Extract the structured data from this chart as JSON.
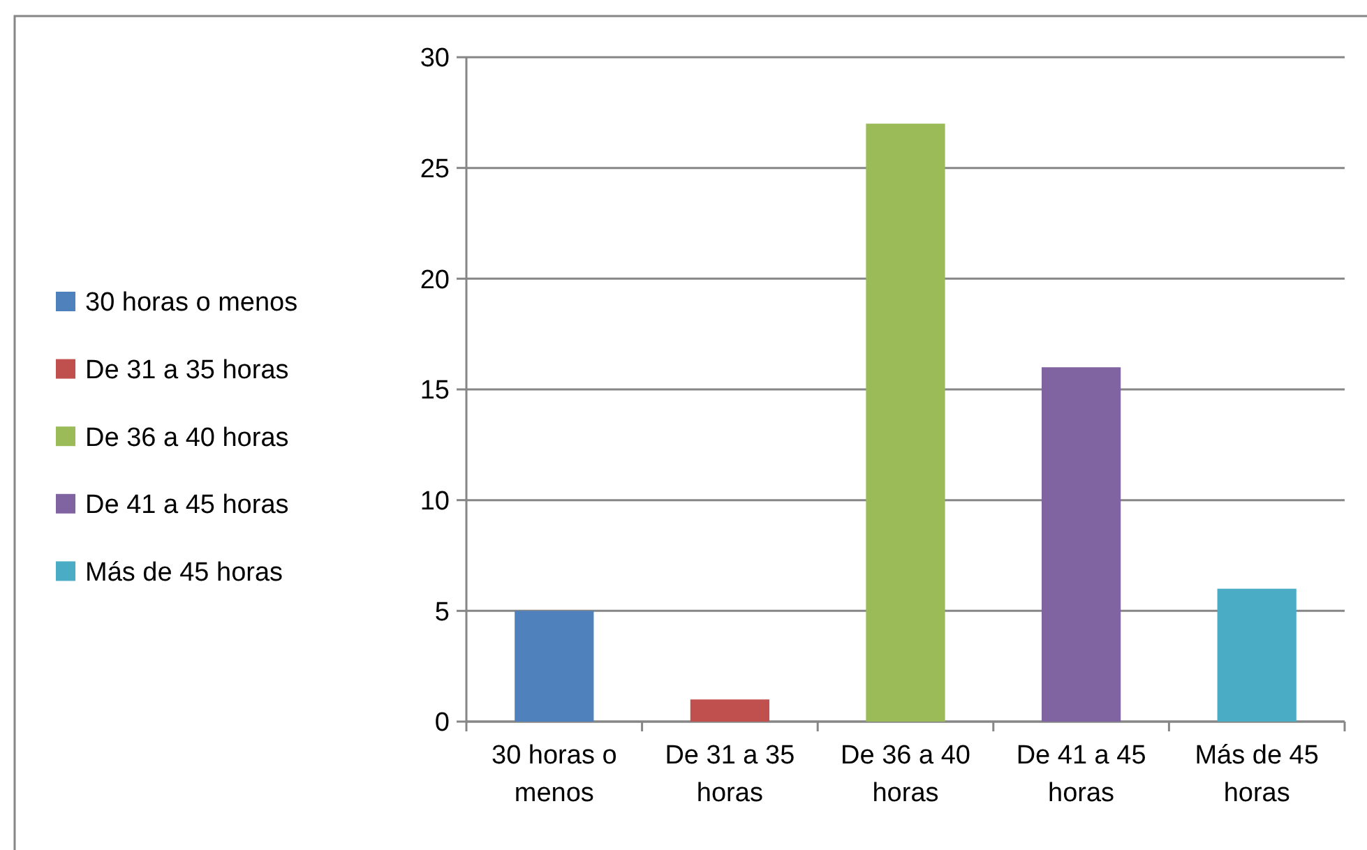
{
  "chart_data": {
    "type": "bar",
    "stacked": true,
    "categories": [
      "30 horas o menos",
      "De 31 a 35 horas",
      "De 36 a 40 horas",
      "De 41 a 45 horas",
      "Más de 45 horas"
    ],
    "series": [
      {
        "name": "30 horas o menos",
        "color": "#4f81bd",
        "values": [
          5,
          null,
          null,
          null,
          null
        ]
      },
      {
        "name": "De 31 a 35 horas",
        "color": "#c0504d",
        "values": [
          null,
          1,
          null,
          null,
          null
        ]
      },
      {
        "name": "De 36 a 40 horas",
        "color": "#9bbb59",
        "values": [
          null,
          null,
          27,
          null,
          null
        ]
      },
      {
        "name": "De 41 a 45 horas",
        "color": "#8064a2",
        "values": [
          null,
          null,
          null,
          16,
          null
        ]
      },
      {
        "name": "Más de 45 horas",
        "color": "#4bacc6",
        "values": [
          null,
          null,
          null,
          null,
          6
        ]
      }
    ],
    "ylim": [
      0,
      30
    ],
    "yticks": [
      0,
      5,
      10,
      15,
      20,
      25,
      30
    ],
    "grid": "y",
    "legend": "left"
  }
}
